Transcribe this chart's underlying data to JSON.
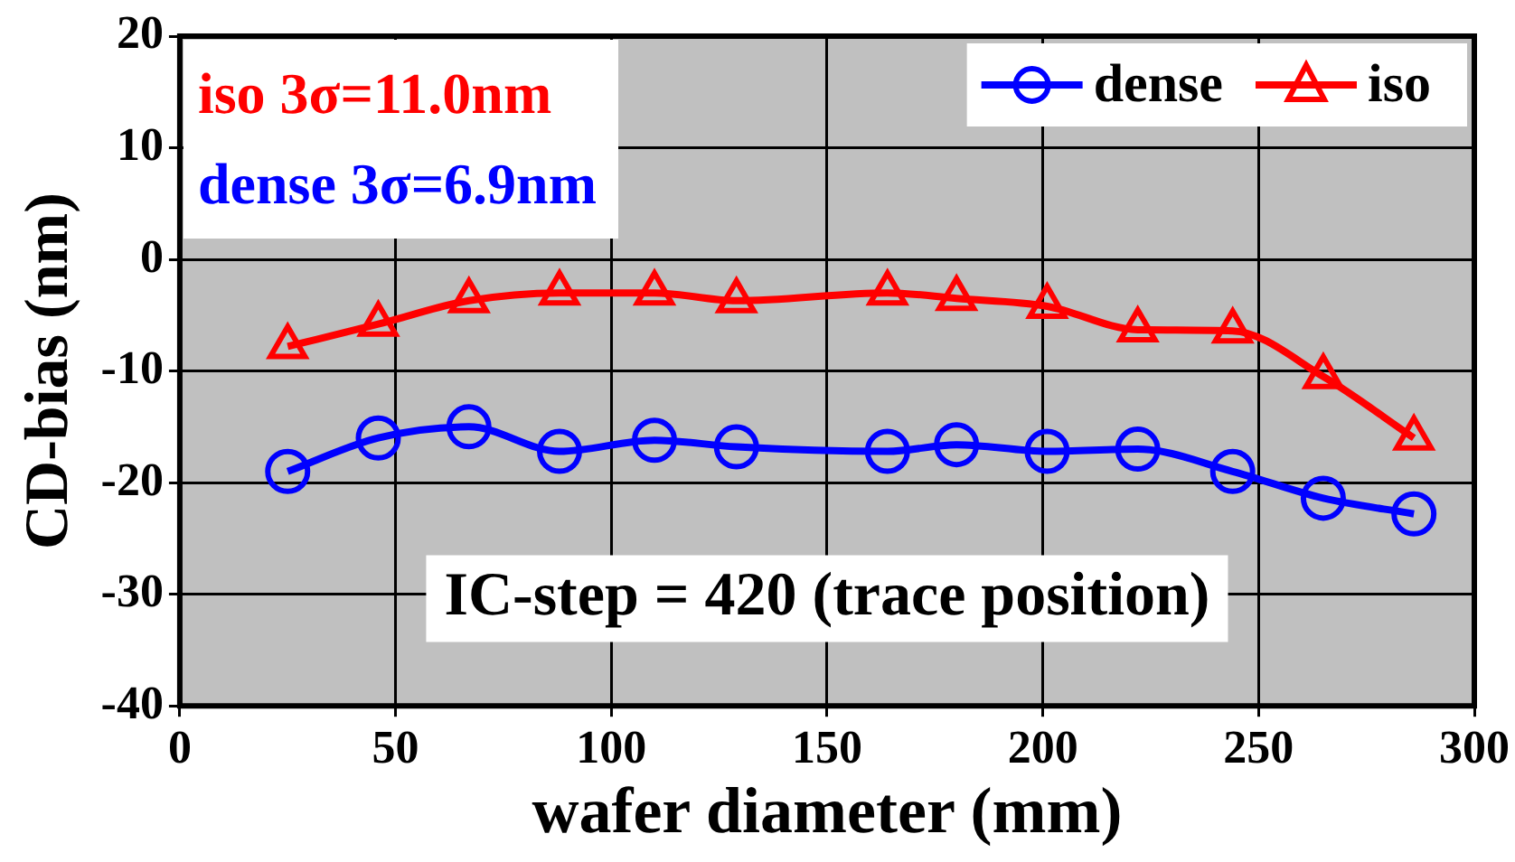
{
  "chart_data": {
    "type": "line",
    "xlabel": "wafer diameter (mm)",
    "ylabel": "CD-bias (nm)",
    "x": [
      25,
      46,
      67,
      88,
      110,
      129,
      164,
      180,
      201,
      222,
      244,
      265,
      286
    ],
    "series": [
      {
        "name": "dense",
        "color": "#0000ff",
        "marker": "circle",
        "values": [
          -19,
          -16,
          -15,
          -17.2,
          -16.2,
          -16.8,
          -17.2,
          -16.6,
          -17.2,
          -17,
          -19,
          -21.4,
          -22.8
        ]
      },
      {
        "name": "iso",
        "color": "#ff0000",
        "marker": "triangle",
        "values": [
          -7.8,
          -5.8,
          -3.7,
          -3,
          -3,
          -3.7,
          -3,
          -3.5,
          -4.2,
          -6.3,
          -6.4,
          -10.5,
          -16
        ]
      }
    ],
    "annotations": [
      "iso 3σ=11.0nm",
      "dense 3σ=6.9nm",
      "IC-step = 420 (trace position)"
    ],
    "xlim": [
      0,
      300
    ],
    "xticks": [
      0,
      50,
      100,
      150,
      200,
      250,
      300
    ],
    "ylim": [
      -40,
      20
    ],
    "yticks": [
      -40,
      -30,
      -20,
      -10,
      0,
      10,
      20
    ],
    "grid": true,
    "legend": "top right"
  }
}
